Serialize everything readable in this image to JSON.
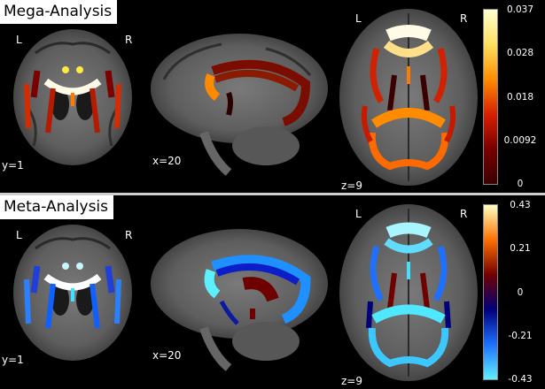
{
  "panels": [
    {
      "title": "Mega-Analysis",
      "orientation_left": "L",
      "orientation_right": "R",
      "slice_coronal": "y=1",
      "slice_sagittal": "x=20",
      "slice_axial": "z=9",
      "colorbar_ticks": [
        "0.037",
        "0.028",
        "0.018",
        "0.0092",
        "0"
      ],
      "colormap": "hot",
      "colors": [
        "#ffffd0",
        "#ffe060",
        "#ff8c00",
        "#d82000",
        "#780000",
        "#3a0000"
      ]
    },
    {
      "title": "Meta-Analysis",
      "orientation_left": "L",
      "orientation_right": "R",
      "slice_coronal": "y=1",
      "slice_sagittal": "x=20",
      "slice_axial": "z=9",
      "colorbar_ticks": [
        "0.43",
        "0.21",
        "0",
        "-0.21",
        "-0.43"
      ],
      "colormap": "diverging",
      "colors": [
        "#ffffc0",
        "#ff7000",
        "#700000",
        "#00007a",
        "#1e70ff",
        "#60f0ff"
      ]
    }
  ]
}
